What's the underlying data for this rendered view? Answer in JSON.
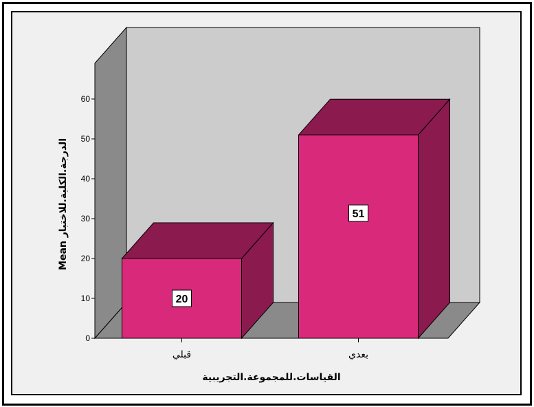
{
  "chart_data": {
    "type": "bar",
    "categories": [
      "قبلي",
      "بعدي"
    ],
    "values": [
      20,
      51
    ],
    "data_labels": [
      "20",
      "51"
    ],
    "title": "",
    "xlabel": "القياسات.للمجموعة.التجريبية",
    "ylabel": "Mean الدرجة.الكلية.للاختبار",
    "ylim": [
      0,
      60
    ],
    "yticks": [
      0,
      10,
      20,
      30,
      40,
      50,
      60
    ],
    "three_d": true,
    "grid": false,
    "colors": {
      "bar_front": "#d8297a",
      "bar_top": "#8b1a4f",
      "bar_side": "#8b1a4f",
      "back_wall": "#cccccc",
      "side_wall": "#8a8a8a",
      "floor": "#8a8a8a",
      "plot_background": "#f0f0f0"
    }
  }
}
